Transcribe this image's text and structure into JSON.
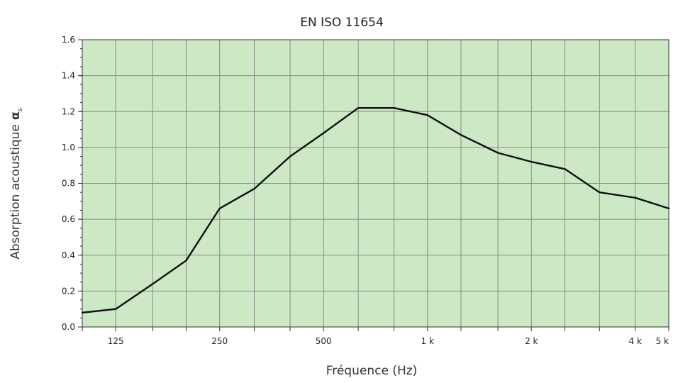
{
  "chart_data": {
    "type": "line",
    "title": "EN ISO 11654",
    "xlabel": "Fréquence (Hz)",
    "ylabel": "Absorption acoustique",
    "ylabel_symbol": "α",
    "ylabel_subscript": "s",
    "x_scale": "log",
    "xlim": [
      100,
      5000
    ],
    "ylim": [
      0,
      1.6
    ],
    "y_ticks": [
      0.0,
      0.2,
      0.4,
      0.6,
      0.8,
      1.0,
      1.2,
      1.4,
      1.6
    ],
    "y_tick_labels": [
      "0.0",
      "0.2",
      "0.4",
      "0.6",
      "0.8",
      "1.0",
      "1.2",
      "1.4",
      "1.6"
    ],
    "x_tick_labels": [
      {
        "x": 125,
        "label": "125"
      },
      {
        "x": 250,
        "label": "250"
      },
      {
        "x": 500,
        "label": "500"
      },
      {
        "x": 1000,
        "label": "1 k"
      },
      {
        "x": 2000,
        "label": "2 k"
      },
      {
        "x": 4000,
        "label": "4 k"
      },
      {
        "x": 5000,
        "label": "5 k"
      }
    ],
    "x_gridlines": [
      125,
      160,
      200,
      250,
      315,
      400,
      500,
      630,
      800,
      1000,
      1250,
      1600,
      2000,
      2500,
      3150,
      4000
    ],
    "grid": true,
    "series": [
      {
        "x": [
          100,
          125,
          160,
          200,
          250,
          315,
          400,
          500,
          630,
          800,
          1000,
          1250,
          1600,
          2000,
          2500,
          3150,
          4000,
          5000
        ],
        "y": [
          0.08,
          0.1,
          0.24,
          0.37,
          0.66,
          0.77,
          0.95,
          1.08,
          1.22,
          1.22,
          1.18,
          1.07,
          0.97,
          0.92,
          0.88,
          0.75,
          0.72,
          0.66
        ]
      }
    ],
    "colors": {
      "plot_background": "#cde8c5",
      "grid": "#8a8a8a",
      "line": "#111111",
      "axis": "#333333"
    }
  }
}
